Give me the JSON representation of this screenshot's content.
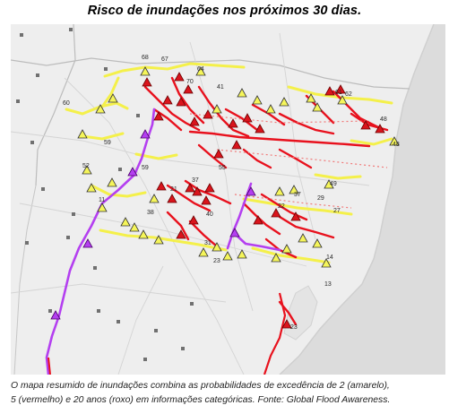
{
  "title": "Risco de inundações nos próximos 30 dias.",
  "caption": {
    "line1": "O mapa resumido de inundações combina as probabilidades de excedência de 2 (amarelo),",
    "line2": "5 (vermelho) e 20 anos (roxo) em informações categóricas. Fonte: Global Flood Awareness."
  },
  "legend_colors": {
    "return_period_2_years": "#f5f55a",
    "return_period_5_years": "#e8111d",
    "return_period_20_years": "#b43ff0",
    "ocean": "#dedede",
    "land": "#eeeeee"
  }
}
